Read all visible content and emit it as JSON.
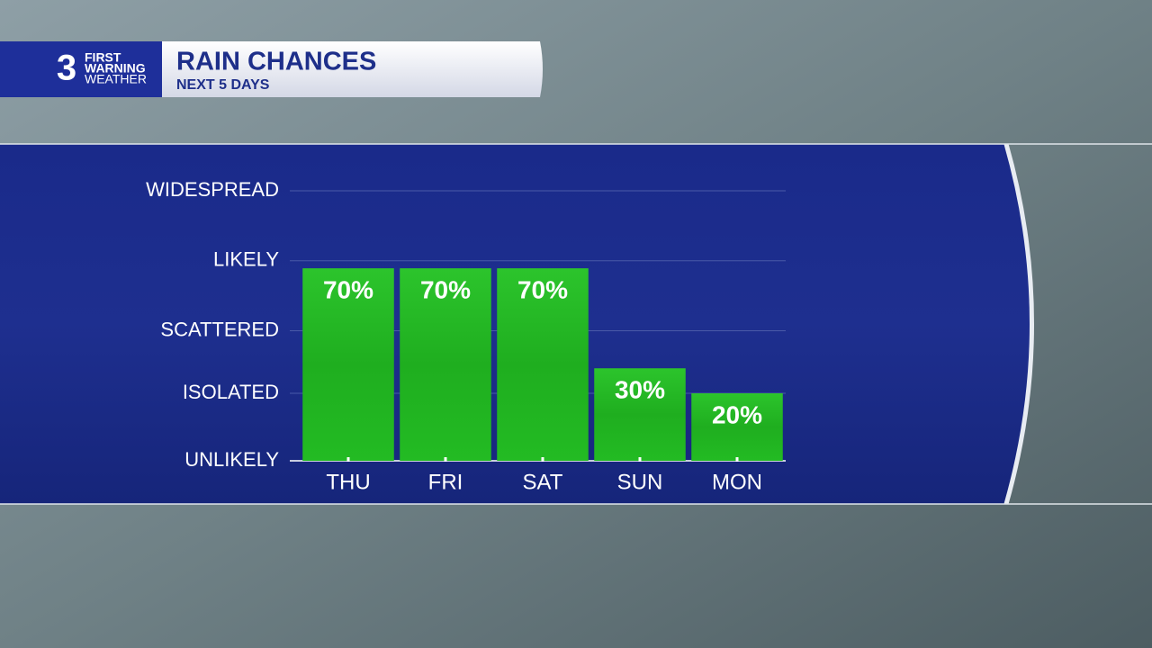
{
  "logo": {
    "number": "3",
    "line1": "FIRST",
    "line2": "WARNING",
    "line3": "WEATHER"
  },
  "chart_data": {
    "type": "bar",
    "title": "RAIN CHANCES",
    "subtitle": "NEXT 5 DAYS",
    "categories": [
      "THU",
      "FRI",
      "SAT",
      "SUN",
      "MON"
    ],
    "values": [
      70,
      70,
      70,
      30,
      20
    ],
    "value_labels": [
      "70%",
      "70%",
      "70%",
      "30%",
      "20%"
    ],
    "color": "#1fb81f",
    "ylim": [
      -7,
      101
    ],
    "yticks": [
      {
        "value": -7,
        "label": "UNLIKELY"
      },
      {
        "value": 20,
        "label": "ISOLATED"
      },
      {
        "value": 45,
        "label": "SCATTERED"
      },
      {
        "value": 73,
        "label": "LIKELY"
      },
      {
        "value": 101,
        "label": "WIDESPREAD"
      }
    ],
    "grid": true
  }
}
